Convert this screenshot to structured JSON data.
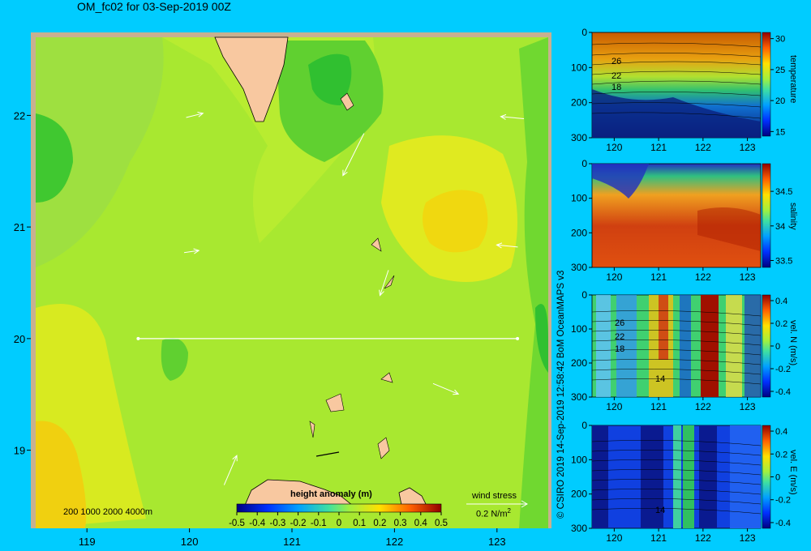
{
  "main_title": "OM_fc02 for 03-Sep-2019 00Z",
  "credit": "© CSIRO 2019  14-Sep-2019 12:58:42 BoM OceanMAPS v3",
  "depth_legend": "200  1000  2000  4000m",
  "wind_stress": {
    "title": "wind stress",
    "scale_label": "0.2 N/m",
    "exponent": "2"
  },
  "colors": {
    "background": "#00ccff",
    "land": "#f8c8a0",
    "shelf": "#c8b090"
  },
  "chart_data": [
    {
      "type": "heatmap",
      "title": "OM_fc02 for 03-Sep-2019 00Z",
      "field": "height anomaly (m)",
      "xlabel": "",
      "ylabel": "",
      "xlim": [
        118.5,
        123.5
      ],
      "ylim": [
        18.3,
        22.7
      ],
      "x_ticks": [
        "119",
        "120",
        "121",
        "122",
        "123"
      ],
      "y_ticks": [
        "19",
        "20",
        "21",
        "22"
      ],
      "section_line": {
        "lat": 20.0,
        "lon_start": 119.5,
        "lon_end": 123.2
      },
      "colorbar": {
        "label": "height anomaly (m)",
        "ticks": [
          "-0.5",
          "-0.4",
          "-0.3",
          "-0.2",
          "-0.1",
          "0",
          "0.1",
          "0.2",
          "0.3",
          "0.4",
          "0.5"
        ],
        "range": [
          -0.5,
          0.5
        ]
      },
      "wind_vectors": [
        {
          "lon": 120.05,
          "lat": 22.0,
          "u": 0.08,
          "v": 0.02
        },
        {
          "lon": 121.6,
          "lat": 21.65,
          "u": -0.1,
          "v": -0.2
        },
        {
          "lon": 123.15,
          "lat": 21.98,
          "u": -0.11,
          "v": 0.01
        },
        {
          "lon": 120.02,
          "lat": 20.78,
          "u": 0.07,
          "v": 0.01
        },
        {
          "lon": 123.1,
          "lat": 20.83,
          "u": -0.1,
          "v": 0.01
        },
        {
          "lon": 121.9,
          "lat": 20.5,
          "u": -0.04,
          "v": -0.12
        },
        {
          "lon": 122.5,
          "lat": 19.55,
          "u": 0.12,
          "v": -0.05
        },
        {
          "lon": 120.4,
          "lat": 18.82,
          "u": 0.06,
          "v": 0.14
        }
      ]
    },
    {
      "type": "heatmap",
      "field": "temperature",
      "xlim": [
        119.5,
        123.3
      ],
      "ylim_depth": [
        0,
        300
      ],
      "x_ticks": [
        "120",
        "121",
        "122",
        "123"
      ],
      "y_ticks": [
        "0",
        "100",
        "200",
        "300"
      ],
      "colorbar": {
        "label": "temperature",
        "ticks": [
          "15",
          "20",
          "25",
          "30"
        ],
        "range": [
          14,
          31
        ]
      },
      "contour_labels": [
        "26",
        "22",
        "18"
      ]
    },
    {
      "type": "heatmap",
      "field": "salinity",
      "xlim": [
        119.5,
        123.3
      ],
      "ylim_depth": [
        0,
        300
      ],
      "x_ticks": [
        "120",
        "121",
        "122",
        "123"
      ],
      "y_ticks": [
        "0",
        "100",
        "200",
        "300"
      ],
      "colorbar": {
        "label": "salinity",
        "ticks": [
          "33.5",
          "34",
          "34.5"
        ],
        "range": [
          33.4,
          34.9
        ]
      }
    },
    {
      "type": "heatmap",
      "field": "vel. N (m/s)",
      "xlim": [
        119.5,
        123.3
      ],
      "ylim_depth": [
        0,
        300
      ],
      "x_ticks": [
        "120",
        "121",
        "122",
        "123"
      ],
      "y_ticks": [
        "0",
        "100",
        "200",
        "300"
      ],
      "colorbar": {
        "label": "vel. N (m/s)",
        "ticks": [
          "0.4",
          "0.2",
          "0",
          "-0.2",
          "-0.4"
        ],
        "range": [
          -0.45,
          0.45
        ]
      },
      "contour_labels": [
        "26",
        "22",
        "18",
        "14"
      ]
    },
    {
      "type": "heatmap",
      "field": "vel. E (m/s)",
      "xlim": [
        119.5,
        123.3
      ],
      "ylim_depth": [
        0,
        300
      ],
      "x_ticks": [
        "120",
        "121",
        "122",
        "123"
      ],
      "y_ticks": [
        "0",
        "100",
        "200",
        "300"
      ],
      "colorbar": {
        "label": "vel. E (m/s)",
        "ticks": [
          "0.4",
          "0.2",
          "0",
          "-0.2",
          "-0.4"
        ],
        "range": [
          -0.45,
          0.45
        ]
      },
      "contour_labels": [
        "14"
      ]
    }
  ]
}
